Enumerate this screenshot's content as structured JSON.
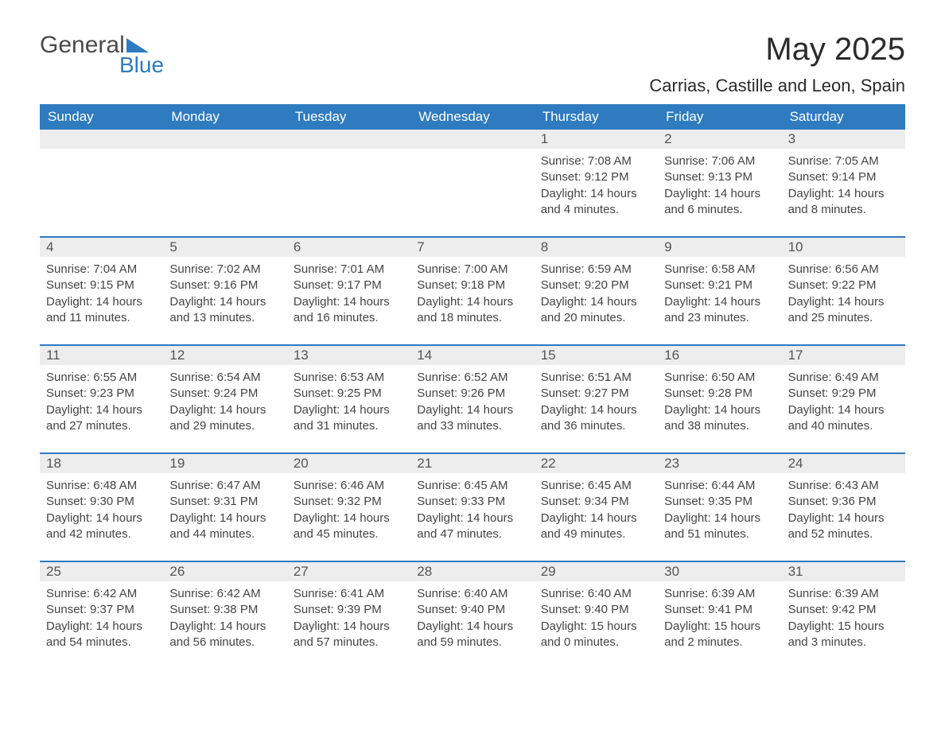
{
  "logo": {
    "text1": "General",
    "text2": "Blue"
  },
  "title": "May 2025",
  "location": "Carrias, Castille and Leon, Spain",
  "colors": {
    "header_bg": "#2f7bbf",
    "header_fg": "#ffffff",
    "daynum_bg": "#ededed",
    "text": "#444444",
    "rule": "#2f7bbf",
    "background": "#ffffff"
  },
  "dow": [
    "Sunday",
    "Monday",
    "Tuesday",
    "Wednesday",
    "Thursday",
    "Friday",
    "Saturday"
  ],
  "weeks": [
    [
      {
        "blank": true
      },
      {
        "blank": true
      },
      {
        "blank": true
      },
      {
        "blank": true
      },
      {
        "n": "1",
        "sunrise": "7:08 AM",
        "sunset": "9:12 PM",
        "daylight": "14 hours and 4 minutes."
      },
      {
        "n": "2",
        "sunrise": "7:06 AM",
        "sunset": "9:13 PM",
        "daylight": "14 hours and 6 minutes."
      },
      {
        "n": "3",
        "sunrise": "7:05 AM",
        "sunset": "9:14 PM",
        "daylight": "14 hours and 8 minutes."
      }
    ],
    [
      {
        "n": "4",
        "sunrise": "7:04 AM",
        "sunset": "9:15 PM",
        "daylight": "14 hours and 11 minutes."
      },
      {
        "n": "5",
        "sunrise": "7:02 AM",
        "sunset": "9:16 PM",
        "daylight": "14 hours and 13 minutes."
      },
      {
        "n": "6",
        "sunrise": "7:01 AM",
        "sunset": "9:17 PM",
        "daylight": "14 hours and 16 minutes."
      },
      {
        "n": "7",
        "sunrise": "7:00 AM",
        "sunset": "9:18 PM",
        "daylight": "14 hours and 18 minutes."
      },
      {
        "n": "8",
        "sunrise": "6:59 AM",
        "sunset": "9:20 PM",
        "daylight": "14 hours and 20 minutes."
      },
      {
        "n": "9",
        "sunrise": "6:58 AM",
        "sunset": "9:21 PM",
        "daylight": "14 hours and 23 minutes."
      },
      {
        "n": "10",
        "sunrise": "6:56 AM",
        "sunset": "9:22 PM",
        "daylight": "14 hours and 25 minutes."
      }
    ],
    [
      {
        "n": "11",
        "sunrise": "6:55 AM",
        "sunset": "9:23 PM",
        "daylight": "14 hours and 27 minutes."
      },
      {
        "n": "12",
        "sunrise": "6:54 AM",
        "sunset": "9:24 PM",
        "daylight": "14 hours and 29 minutes."
      },
      {
        "n": "13",
        "sunrise": "6:53 AM",
        "sunset": "9:25 PM",
        "daylight": "14 hours and 31 minutes."
      },
      {
        "n": "14",
        "sunrise": "6:52 AM",
        "sunset": "9:26 PM",
        "daylight": "14 hours and 33 minutes."
      },
      {
        "n": "15",
        "sunrise": "6:51 AM",
        "sunset": "9:27 PM",
        "daylight": "14 hours and 36 minutes."
      },
      {
        "n": "16",
        "sunrise": "6:50 AM",
        "sunset": "9:28 PM",
        "daylight": "14 hours and 38 minutes."
      },
      {
        "n": "17",
        "sunrise": "6:49 AM",
        "sunset": "9:29 PM",
        "daylight": "14 hours and 40 minutes."
      }
    ],
    [
      {
        "n": "18",
        "sunrise": "6:48 AM",
        "sunset": "9:30 PM",
        "daylight": "14 hours and 42 minutes."
      },
      {
        "n": "19",
        "sunrise": "6:47 AM",
        "sunset": "9:31 PM",
        "daylight": "14 hours and 44 minutes."
      },
      {
        "n": "20",
        "sunrise": "6:46 AM",
        "sunset": "9:32 PM",
        "daylight": "14 hours and 45 minutes."
      },
      {
        "n": "21",
        "sunrise": "6:45 AM",
        "sunset": "9:33 PM",
        "daylight": "14 hours and 47 minutes."
      },
      {
        "n": "22",
        "sunrise": "6:45 AM",
        "sunset": "9:34 PM",
        "daylight": "14 hours and 49 minutes."
      },
      {
        "n": "23",
        "sunrise": "6:44 AM",
        "sunset": "9:35 PM",
        "daylight": "14 hours and 51 minutes."
      },
      {
        "n": "24",
        "sunrise": "6:43 AM",
        "sunset": "9:36 PM",
        "daylight": "14 hours and 52 minutes."
      }
    ],
    [
      {
        "n": "25",
        "sunrise": "6:42 AM",
        "sunset": "9:37 PM",
        "daylight": "14 hours and 54 minutes."
      },
      {
        "n": "26",
        "sunrise": "6:42 AM",
        "sunset": "9:38 PM",
        "daylight": "14 hours and 56 minutes."
      },
      {
        "n": "27",
        "sunrise": "6:41 AM",
        "sunset": "9:39 PM",
        "daylight": "14 hours and 57 minutes."
      },
      {
        "n": "28",
        "sunrise": "6:40 AM",
        "sunset": "9:40 PM",
        "daylight": "14 hours and 59 minutes."
      },
      {
        "n": "29",
        "sunrise": "6:40 AM",
        "sunset": "9:40 PM",
        "daylight": "15 hours and 0 minutes."
      },
      {
        "n": "30",
        "sunrise": "6:39 AM",
        "sunset": "9:41 PM",
        "daylight": "15 hours and 2 minutes."
      },
      {
        "n": "31",
        "sunrise": "6:39 AM",
        "sunset": "9:42 PM",
        "daylight": "15 hours and 3 minutes."
      }
    ]
  ],
  "labels": {
    "sunrise": "Sunrise:",
    "sunset": "Sunset:",
    "daylight": "Daylight:"
  }
}
